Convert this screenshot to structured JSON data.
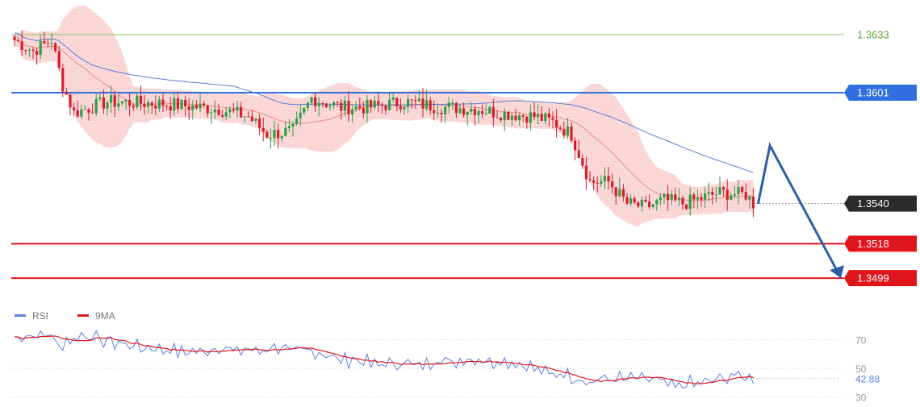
{
  "chart_data": [
    {
      "type": "candlestick",
      "panel": "price",
      "grid": false,
      "ylim": [
        1.3488,
        1.3652
      ],
      "colors": {
        "up": "#2e9e48",
        "down": "#d81e2b",
        "bb_fill": "#fbd9d9",
        "ma_short": "#f08a8a",
        "ma_long": "#5b7fcf"
      },
      "levels": [
        {
          "value": 1.3633,
          "label": "1.3633",
          "kind": "thin",
          "color": "#8fc470",
          "label_color": "#5fa33a",
          "label_bg": "none"
        },
        {
          "value": 1.3601,
          "label": "1.3601",
          "kind": "thick",
          "color": "#2f6fe0",
          "label_color": "#ffffff",
          "label_bg": "#2f6fe0"
        },
        {
          "value": 1.354,
          "label": "1.3540",
          "kind": "dotted",
          "color": "#333333",
          "label_color": "#ffffff",
          "label_bg": "#2b2b2b"
        },
        {
          "value": 1.3518,
          "label": "1.3518",
          "kind": "thick",
          "color": "#e0151b",
          "label_color": "#ffffff",
          "label_bg": "#e0151b"
        },
        {
          "value": 1.3499,
          "label": "1.3499",
          "kind": "thick",
          "color": "#e0151b",
          "label_color": "#ffffff",
          "label_bg": "#e0151b"
        }
      ],
      "forecast": {
        "color": "#2c5ea8",
        "path": [
          1.354,
          1.3572,
          1.3499
        ]
      }
    },
    {
      "type": "line",
      "panel": "rsi",
      "legend": [
        {
          "name": "RSI",
          "color": "#5b7fe0"
        },
        {
          "name": "9MA",
          "color": "#e0151b"
        }
      ],
      "ylim": [
        27,
        82
      ],
      "ticks": [
        {
          "value": 70,
          "label": "70"
        },
        {
          "value": 50,
          "label": "50"
        },
        {
          "value": 30,
          "label": "30"
        }
      ],
      "current": {
        "value": 42.88,
        "label": "42.88",
        "color": "#5b7fe0"
      }
    }
  ]
}
